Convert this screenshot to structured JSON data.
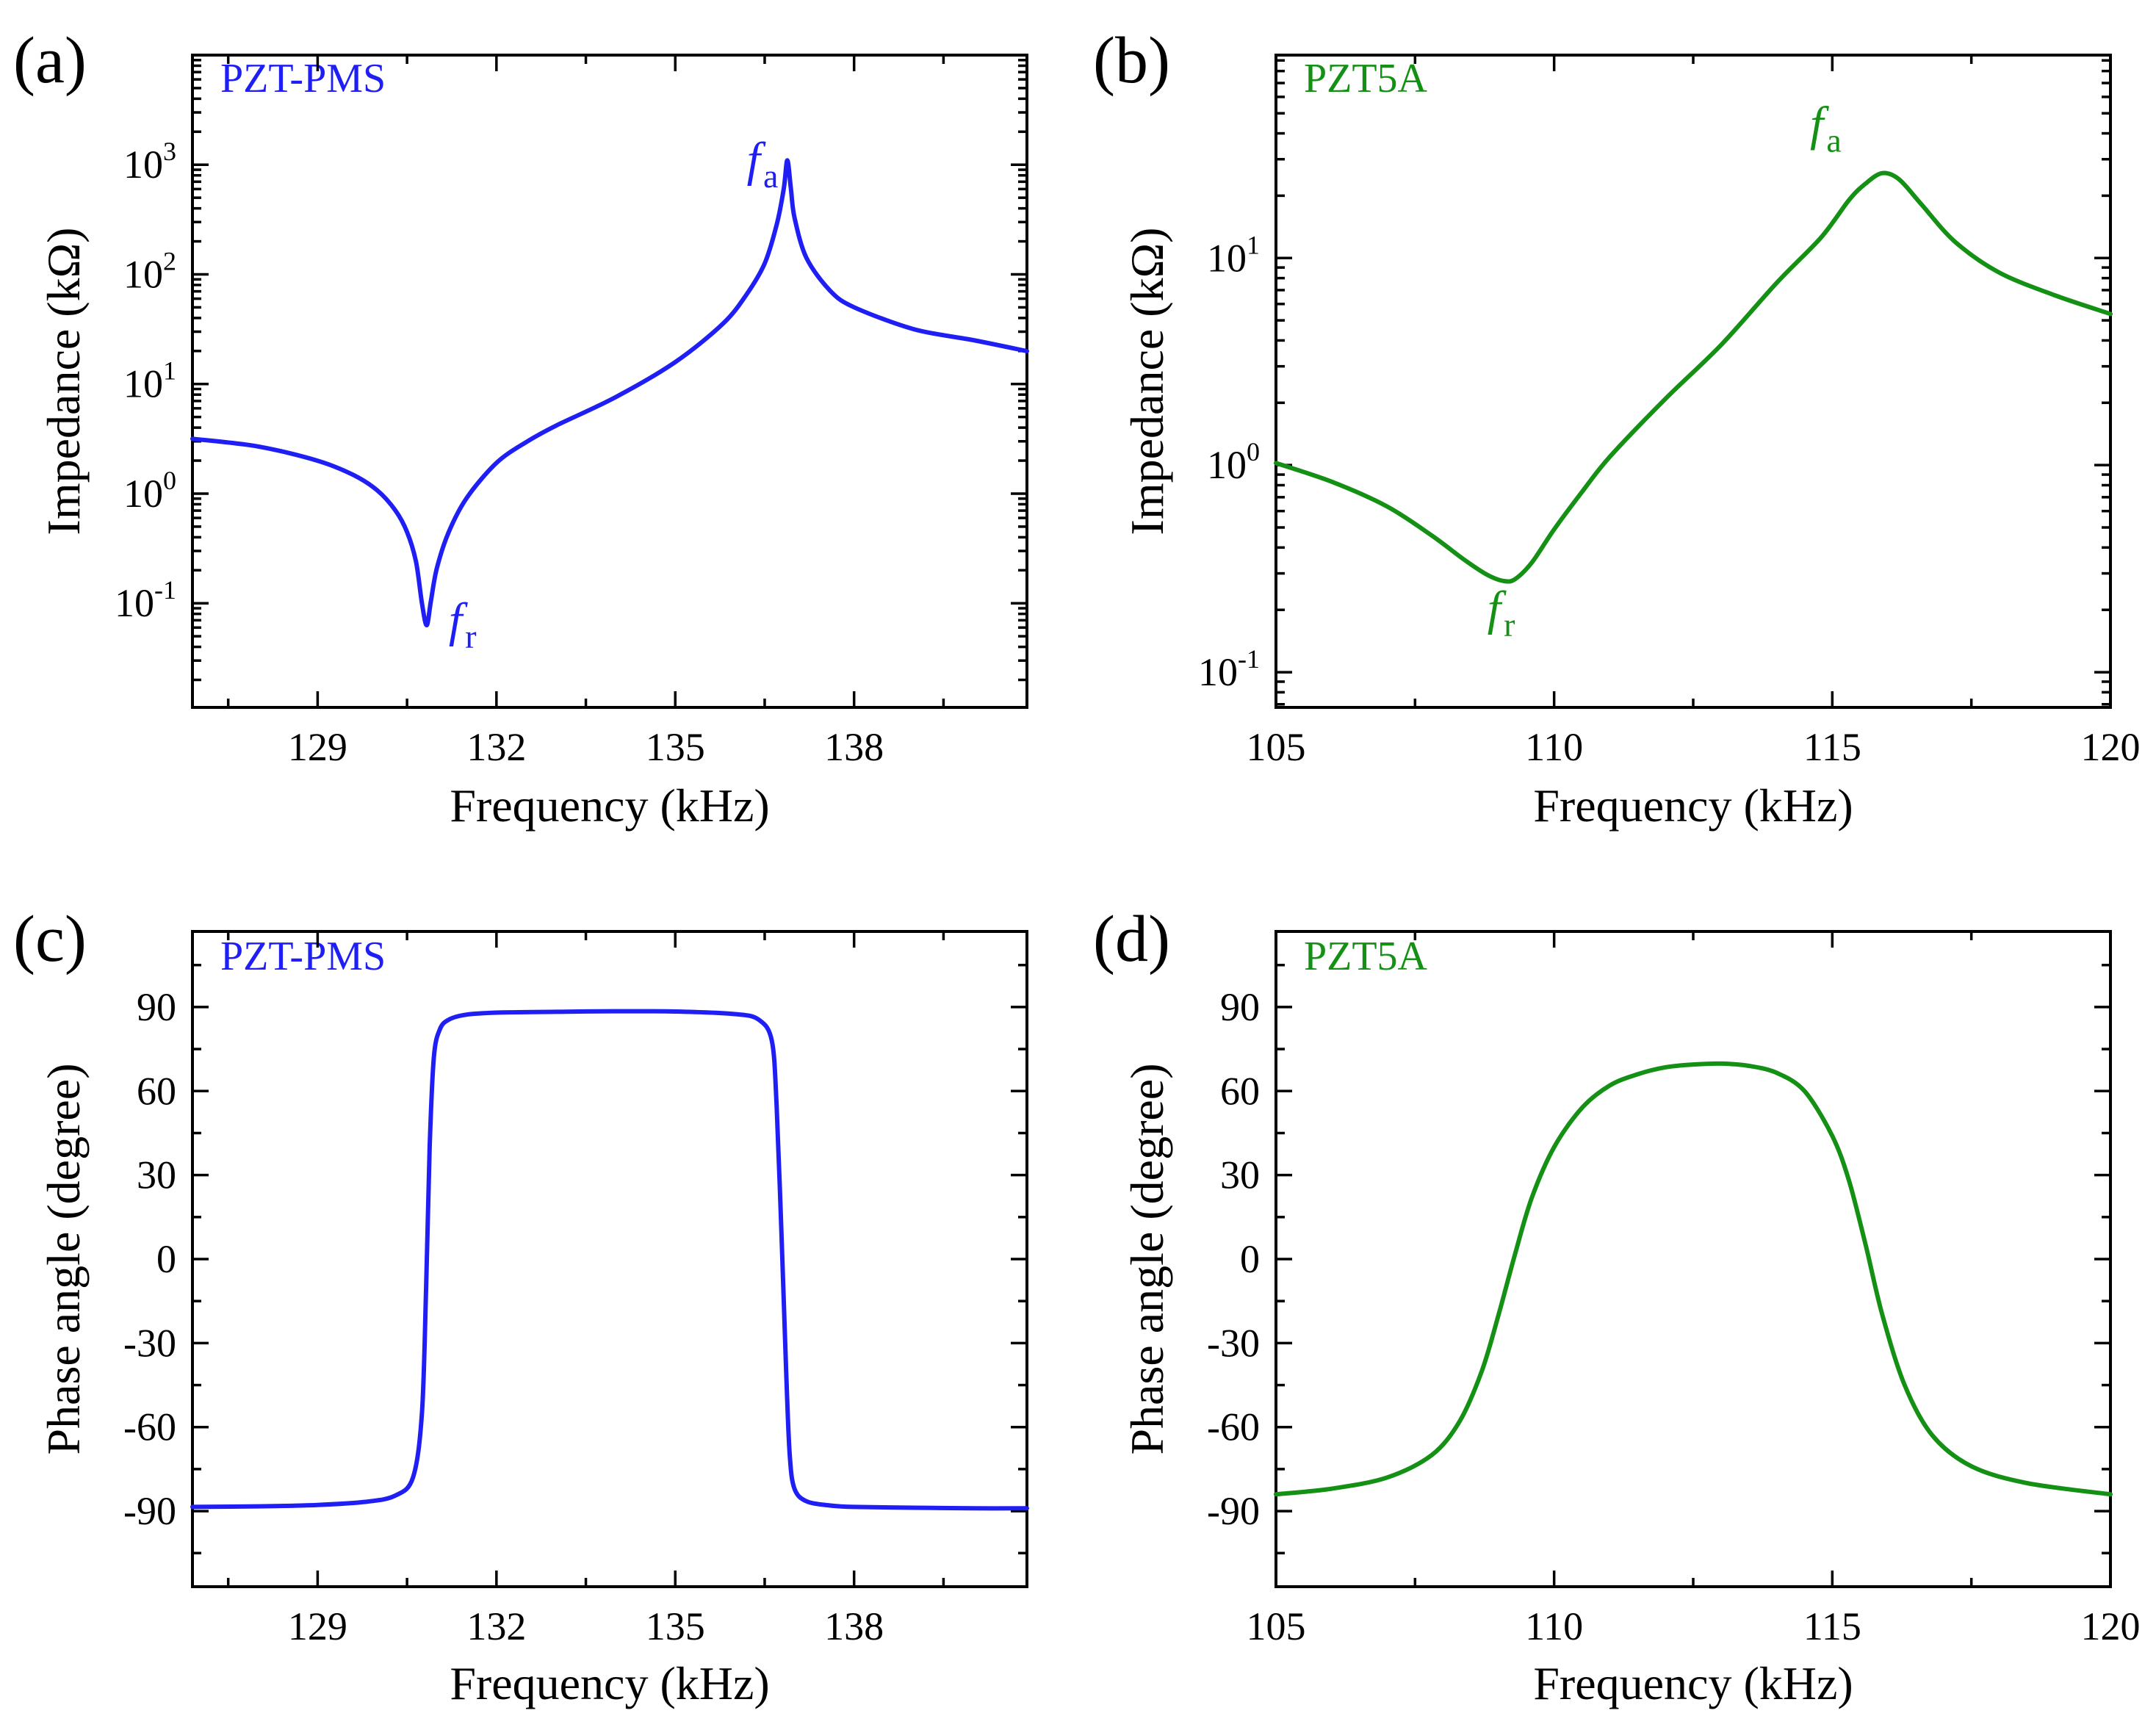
{
  "figure": {
    "x_label": "Frequency (kHz)",
    "impedance_label": "Impedance (kΩ)",
    "phase_label": "Phase angle (degree)"
  },
  "chart_data": [
    {
      "id": "a",
      "panel": "(a)",
      "type": "line",
      "series_name": "PZT-PMS",
      "color": "#1f1ff5",
      "xlabel": "Frequency (kHz)",
      "ylabel": "Impedance (kΩ)",
      "yscale": "log",
      "xlim": [
        126.9,
        140.9
      ],
      "ylim_log10": [
        -1.95,
        4.0
      ],
      "xticks": [
        129,
        132,
        135,
        138
      ],
      "xtick_labels": [
        "129",
        "132",
        "135",
        "138"
      ],
      "yticks_log10": [
        -1,
        0,
        1,
        2,
        3
      ],
      "ytick_labels": [
        [
          "10",
          "-1"
        ],
        [
          "10",
          "0"
        ],
        [
          "10",
          "1"
        ],
        [
          "10",
          "2"
        ],
        [
          "10",
          "3"
        ]
      ],
      "annotations": [
        {
          "name": "fr",
          "text": "f",
          "sub": "r",
          "x": 131.2,
          "y_log10": -1.3
        },
        {
          "name": "fa",
          "text": "f",
          "sub": "a",
          "x": 136.2,
          "y_log10": 2.9
        }
      ],
      "series": [
        {
          "name": "PZT-PMS",
          "x": [
            126.9,
            128.0,
            129.0,
            129.6,
            130.0,
            130.3,
            130.5,
            130.65,
            130.75,
            130.83,
            130.9,
            131.0,
            131.2,
            131.5,
            132.0,
            132.5,
            133.0,
            134.0,
            135.0,
            135.8,
            136.2,
            136.5,
            136.7,
            136.82,
            136.88,
            136.94,
            137.0,
            137.2,
            137.6,
            138.0,
            139.0,
            140.0,
            140.9
          ],
          "y_log10": [
            0.5,
            0.43,
            0.3,
            0.17,
            0.03,
            -0.15,
            -0.35,
            -0.62,
            -1.0,
            -1.2,
            -0.98,
            -0.68,
            -0.35,
            -0.04,
            0.28,
            0.47,
            0.62,
            0.88,
            1.2,
            1.55,
            1.82,
            2.1,
            2.45,
            2.78,
            3.04,
            2.78,
            2.52,
            2.15,
            1.85,
            1.7,
            1.5,
            1.4,
            1.3
          ]
        }
      ]
    },
    {
      "id": "b",
      "panel": "(b)",
      "type": "line",
      "series_name": "PZT5A",
      "color": "#149114",
      "xlabel": "Frequency (kHz)",
      "ylabel": "Impedance (kΩ)",
      "yscale": "log",
      "xlim": [
        105,
        120
      ],
      "ylim_log10": [
        -1.17,
        1.98
      ],
      "xticks": [
        105,
        110,
        115,
        120
      ],
      "xtick_labels": [
        "105",
        "110",
        "115",
        "120"
      ],
      "yticks_log10": [
        -1,
        0,
        1
      ],
      "ytick_labels": [
        [
          "10",
          "-1"
        ],
        [
          "10",
          "0"
        ],
        [
          "10",
          "1"
        ]
      ],
      "annotations": [
        {
          "name": "fr",
          "text": "f",
          "sub": "r",
          "x": 108.8,
          "y_log10": -0.77
        },
        {
          "name": "fa",
          "text": "f",
          "sub": "a",
          "x": 114.6,
          "y_log10": 1.57
        }
      ],
      "series": [
        {
          "name": "PZT5A",
          "x": [
            105.0,
            106.0,
            107.0,
            107.8,
            108.4,
            108.8,
            109.1,
            109.3,
            109.6,
            110.0,
            110.5,
            111.0,
            112.0,
            113.0,
            114.0,
            114.8,
            115.3,
            115.6,
            115.9,
            116.2,
            116.6,
            117.2,
            118.0,
            119.0,
            120.0
          ],
          "y_log10": [
            0.01,
            -0.08,
            -0.2,
            -0.34,
            -0.46,
            -0.53,
            -0.56,
            -0.55,
            -0.47,
            -0.31,
            -0.13,
            0.04,
            0.32,
            0.58,
            0.88,
            1.1,
            1.28,
            1.36,
            1.41,
            1.38,
            1.26,
            1.08,
            0.93,
            0.82,
            0.73
          ]
        }
      ]
    },
    {
      "id": "c",
      "panel": "(c)",
      "type": "line",
      "series_name": "PZT-PMS",
      "color": "#1f1ff5",
      "xlabel": "Frequency (kHz)",
      "ylabel": "Phase angle (degree)",
      "yscale": "linear",
      "xlim": [
        126.9,
        140.9
      ],
      "ylim": [
        -117,
        117
      ],
      "xticks": [
        129,
        132,
        135,
        138
      ],
      "xtick_labels": [
        "129",
        "132",
        "135",
        "138"
      ],
      "yticks": [
        -90,
        -60,
        -30,
        0,
        30,
        60,
        90
      ],
      "ytick_labels": [
        "-90",
        "-60",
        "-30",
        "0",
        "30",
        "60",
        "90"
      ],
      "series": [
        {
          "name": "PZT-PMS",
          "x": [
            126.9,
            128.0,
            129.0,
            129.8,
            130.3,
            130.6,
            130.75,
            130.82,
            130.88,
            130.95,
            131.05,
            131.2,
            131.5,
            132.0,
            133.0,
            134.0,
            135.0,
            136.0,
            136.4,
            136.62,
            136.7,
            136.78,
            136.86,
            136.92,
            137.0,
            137.2,
            137.6,
            138.0,
            139.0,
            140.0,
            140.9
          ],
          "y": [
            -88.5,
            -88.3,
            -87.8,
            -86.7,
            -84.5,
            -78,
            -55,
            -10,
            40,
            72,
            82,
            85.5,
            87.3,
            88,
            88.3,
            88.5,
            88.4,
            87.5,
            85.5,
            78,
            55,
            10,
            -40,
            -70,
            -82,
            -86.5,
            -88,
            -88.5,
            -88.8,
            -89,
            -89
          ]
        }
      ]
    },
    {
      "id": "d",
      "panel": "(d)",
      "type": "line",
      "series_name": "PZT5A",
      "color": "#149114",
      "xlabel": "Frequency (kHz)",
      "ylabel": "Phase angle (degree)",
      "yscale": "linear",
      "xlim": [
        105,
        120
      ],
      "ylim": [
        -117,
        117
      ],
      "xticks": [
        105,
        110,
        115,
        120
      ],
      "xtick_labels": [
        "105",
        "110",
        "115",
        "120"
      ],
      "yticks": [
        -90,
        -60,
        -30,
        0,
        30,
        60,
        90
      ],
      "ytick_labels": [
        "-90",
        "-60",
        "-30",
        "0",
        "30",
        "60",
        "90"
      ],
      "series": [
        {
          "name": "PZT5A",
          "x": [
            105.0,
            106.0,
            107.0,
            107.8,
            108.3,
            108.7,
            109.0,
            109.3,
            109.6,
            110.0,
            110.5,
            111.0,
            111.5,
            112.0,
            112.5,
            113.0,
            113.5,
            114.0,
            114.5,
            115.0,
            115.3,
            115.6,
            115.9,
            116.3,
            116.8,
            117.5,
            118.5,
            120.0
          ],
          "y": [
            -84,
            -82,
            -78,
            -70,
            -58,
            -40,
            -20,
            2,
            22,
            40,
            54,
            62,
            66,
            68.5,
            69.5,
            69.8,
            69,
            66.5,
            60,
            44,
            28,
            5,
            -20,
            -45,
            -63,
            -74,
            -80,
            -84
          ]
        }
      ]
    }
  ]
}
